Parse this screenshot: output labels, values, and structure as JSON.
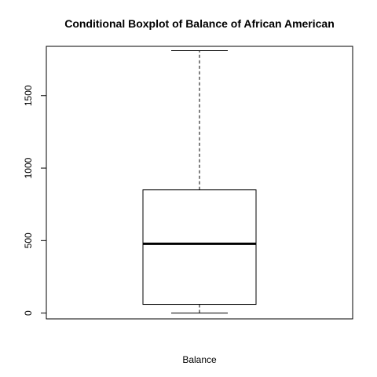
{
  "chart_data": {
    "type": "boxplot",
    "title": "Conditional Boxplot of Balance of African American",
    "xlabel": "Balance",
    "ylabel": "",
    "ylim": [
      -40,
      1840
    ],
    "yticks": [
      0,
      500,
      1000,
      1500
    ],
    "ytick_labels": [
      "0",
      "500",
      "1000",
      "1500"
    ],
    "grid": false,
    "box": {
      "min": 0,
      "q1": 60,
      "median": 478,
      "q3": 850,
      "max": 1810
    }
  }
}
